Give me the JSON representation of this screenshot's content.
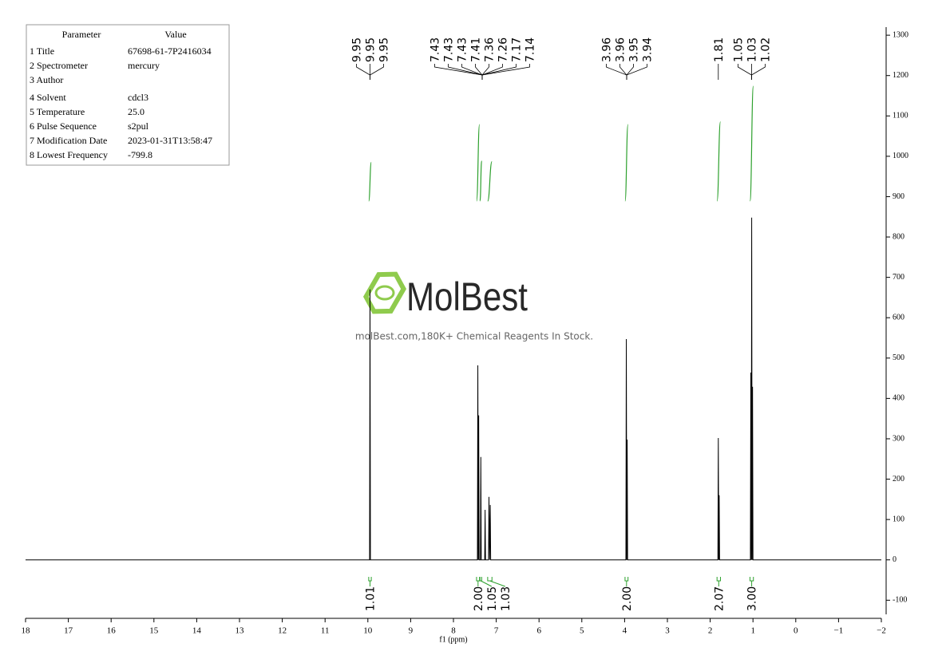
{
  "parameters": {
    "header": [
      "Parameter",
      "Value"
    ],
    "rows": [
      [
        "1 Title",
        "67698-61-7P2416034"
      ],
      [
        "2 Spectrometer",
        "mercury"
      ],
      [
        "3 Author"
      ],
      [
        "4 Solvent",
        "cdcl3"
      ],
      [
        "5 Temperature",
        "25.0"
      ],
      [
        "6 Pulse Sequence",
        "s2pul"
      ],
      [
        "7 Modification Date",
        "2023-01-31T13:58:47"
      ],
      [
        "8 Lowest Frequency",
        "-799.8"
      ]
    ]
  },
  "watermark": {
    "brand": "MolBest",
    "tagline": "molBest.com,180K+ Chemical Reagents In Stock."
  },
  "chart_data": {
    "type": "line",
    "xlabel": "f1 (ppm)",
    "xlim": [
      18,
      -2
    ],
    "ylim": [
      -135,
      1320
    ],
    "xticks": [
      18,
      17,
      16,
      15,
      14,
      13,
      12,
      11,
      10,
      9,
      8,
      7,
      6,
      5,
      4,
      3,
      2,
      1,
      0,
      {
        "value": -1,
        "label": "−1"
      },
      {
        "value": -2,
        "label": "−2"
      }
    ],
    "yticks": [
      -100,
      0,
      100,
      200,
      300,
      400,
      500,
      600,
      700,
      800,
      900,
      1000,
      1100,
      1200,
      1300
    ],
    "series": [
      {
        "color": "#000000",
        "x": [
          18,
          9.96,
          9.95,
          9.94,
          7.44,
          7.43,
          7.42,
          7.41,
          7.4,
          7.37,
          7.36,
          7.35,
          7.27,
          7.26,
          7.25,
          7.18,
          7.17,
          7.155,
          7.14,
          7.13,
          3.97,
          3.96,
          3.95,
          3.94,
          3.93,
          1.82,
          1.81,
          1.8,
          1.79,
          1.78,
          1.06,
          1.05,
          1.04,
          1.03,
          1.02,
          1.01,
          1.0,
          -2
        ],
        "values": [
          0,
          0,
          670,
          0,
          0,
          482,
          0,
          358,
          0,
          0,
          255,
          0,
          0,
          124,
          0,
          0,
          156,
          0,
          136,
          0,
          0,
          547,
          0,
          298,
          0,
          0,
          302,
          0,
          160,
          0,
          0,
          464,
          0,
          848,
          0,
          429,
          0,
          0
        ]
      }
    ],
    "peak_labels": [
      [
        9.95,
        9.95,
        9.95
      ],
      [
        7.43,
        7.43,
        7.43,
        7.41,
        7.36,
        7.26,
        7.17,
        7.14
      ],
      [
        3.96,
        3.96,
        3.95,
        3.94
      ],
      [
        1.81
      ],
      [
        1.05,
        1.03,
        1.02
      ]
    ],
    "integrals": {
      "color": "#2ca02c",
      "ranges": [
        [
          9.98,
          9.92
        ],
        [
          7.46,
          7.39
        ],
        [
          7.38,
          7.34
        ],
        [
          7.2,
          7.1
        ],
        [
          3.99,
          3.92
        ],
        [
          1.84,
          1.76
        ],
        [
          1.07,
          0.99
        ]
      ],
      "values": [
        1.01,
        2,
        1.05,
        1.03,
        2,
        2.07,
        3
      ],
      "value_labels": [
        "1.01",
        "2.00",
        "1.05",
        "1.03",
        "2.00",
        "2.07",
        "3.00"
      ]
    }
  }
}
